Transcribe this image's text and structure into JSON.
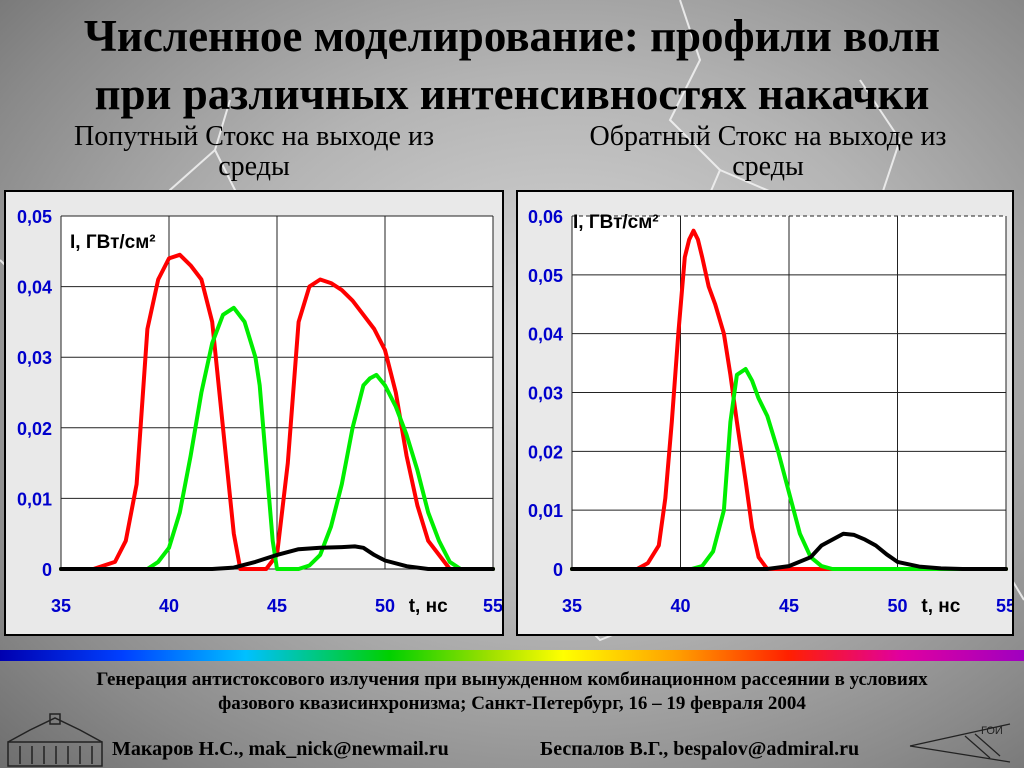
{
  "title": {
    "line1": "Численное моделирование: профили волн",
    "line2": "при различных интенсивностях накачки"
  },
  "panels": [
    {
      "subtitle_line1": "Попутный Стокс на выходе из",
      "subtitle_line2": "среды"
    },
    {
      "subtitle_line1": "Обратный Стокс на выходе из",
      "subtitle_line2": "среды"
    }
  ],
  "chart_data": [
    {
      "type": "line",
      "ylabel": "I, ГВт/см²",
      "xlabel": "t, нс",
      "xlim": [
        35,
        55
      ],
      "ylim": [
        0,
        0.05
      ],
      "x_ticks": [
        "35",
        "40",
        "45",
        "50",
        "55"
      ],
      "y_ticks": [
        "0",
        "0,01",
        "0,02",
        "0,03",
        "0,04",
        "0,05"
      ],
      "grid": true,
      "colors": {
        "red": "#ff0000",
        "green": "#00ee00",
        "black": "#000000"
      },
      "series": [
        {
          "color": "red",
          "x": [
            35,
            36.5,
            37.5,
            38,
            38.5,
            39,
            39.5,
            40,
            40.5,
            41,
            41.5,
            42,
            42.5,
            43,
            43.3,
            44,
            44.5,
            45,
            45.5,
            46,
            46.5,
            47,
            47.5,
            48,
            48.5,
            49,
            49.5,
            50,
            50.5,
            51,
            51.5,
            52,
            52.5,
            53,
            55
          ],
          "y": [
            0,
            0,
            0.001,
            0.004,
            0.012,
            0.034,
            0.041,
            0.044,
            0.0445,
            0.043,
            0.041,
            0.035,
            0.02,
            0.005,
            0,
            0,
            0,
            0.002,
            0.015,
            0.035,
            0.04,
            0.041,
            0.0405,
            0.0395,
            0.038,
            0.036,
            0.034,
            0.031,
            0.025,
            0.016,
            0.009,
            0.004,
            0.002,
            0,
            0
          ]
        },
        {
          "color": "green",
          "x": [
            35,
            39,
            39.5,
            40,
            40.5,
            41,
            41.5,
            42,
            42.5,
            43,
            43.5,
            44,
            44.2,
            44.5,
            44.8,
            45,
            46,
            46.5,
            47,
            47.5,
            48,
            48.5,
            49,
            49.3,
            49.6,
            50,
            50.5,
            51,
            51.5,
            52,
            52.5,
            53,
            53.5,
            55
          ],
          "y": [
            0,
            0,
            0.001,
            0.003,
            0.008,
            0.016,
            0.025,
            0.032,
            0.036,
            0.037,
            0.035,
            0.03,
            0.026,
            0.015,
            0.004,
            0,
            0,
            0.0005,
            0.002,
            0.006,
            0.012,
            0.02,
            0.026,
            0.027,
            0.0275,
            0.026,
            0.023,
            0.019,
            0.014,
            0.008,
            0.004,
            0.001,
            0,
            0
          ]
        },
        {
          "color": "black",
          "x": [
            35,
            41,
            42,
            43,
            44,
            45,
            46,
            47,
            48,
            48.6,
            49,
            49.5,
            50,
            51,
            52,
            53,
            55
          ],
          "y": [
            0,
            0,
            0,
            0.0002,
            0.001,
            0.002,
            0.0028,
            0.003,
            0.0031,
            0.0032,
            0.003,
            0.002,
            0.0012,
            0.0004,
            0,
            0,
            0
          ]
        }
      ]
    },
    {
      "type": "line",
      "ylabel": "I, ГВт/см²",
      "xlabel": "t, нс",
      "xlim": [
        35,
        55
      ],
      "ylim": [
        0,
        0.06
      ],
      "x_ticks": [
        "35",
        "40",
        "45",
        "50",
        "55"
      ],
      "y_ticks": [
        "0",
        "0,01",
        "0,02",
        "0,03",
        "0,04",
        "0,05",
        "0,06"
      ],
      "grid": true,
      "colors": {
        "red": "#ff0000",
        "green": "#00ee00",
        "black": "#000000"
      },
      "series": [
        {
          "color": "red",
          "x": [
            35,
            38,
            38.5,
            39,
            39.3,
            39.6,
            39.9,
            40.2,
            40.4,
            40.6,
            40.8,
            41,
            41.3,
            41.6,
            42,
            42.3,
            42.6,
            43,
            43.3,
            43.6,
            44,
            55
          ],
          "y": [
            0,
            0,
            0.001,
            0.004,
            0.012,
            0.025,
            0.04,
            0.053,
            0.056,
            0.0575,
            0.056,
            0.053,
            0.048,
            0.045,
            0.04,
            0.033,
            0.025,
            0.015,
            0.007,
            0.002,
            0,
            0
          ]
        },
        {
          "color": "green",
          "x": [
            35,
            40.5,
            41,
            41.5,
            42,
            42.3,
            42.6,
            43,
            43.3,
            43.6,
            44,
            44.5,
            45,
            45.5,
            46,
            46.5,
            47,
            55
          ],
          "y": [
            0,
            0,
            0.0005,
            0.003,
            0.01,
            0.025,
            0.033,
            0.034,
            0.032,
            0.029,
            0.026,
            0.02,
            0.013,
            0.006,
            0.002,
            0.0005,
            0,
            0
          ]
        },
        {
          "color": "black",
          "x": [
            35,
            43,
            44,
            45,
            46,
            46.5,
            47,
            47.5,
            48,
            48.5,
            49,
            49.5,
            50,
            51,
            52,
            53,
            55
          ],
          "y": [
            0,
            0,
            0,
            0.0005,
            0.002,
            0.004,
            0.005,
            0.006,
            0.0058,
            0.005,
            0.004,
            0.0025,
            0.0012,
            0.0004,
            0.0001,
            0,
            0
          ]
        }
      ]
    }
  ],
  "conference": {
    "line1": "Генерация антистоксового излучения при вынужденном комбинационном рассеянии в условиях",
    "line2": "фазового квазисинхронизма; Санкт-Петербург, 16 – 19 февраля 2004"
  },
  "authors": [
    "Макаров Н.С., mak_nick@newmail.ru",
    "Беспалов В.Г., bespalov@admiral.ru"
  ],
  "logo_text": "ГОИ"
}
